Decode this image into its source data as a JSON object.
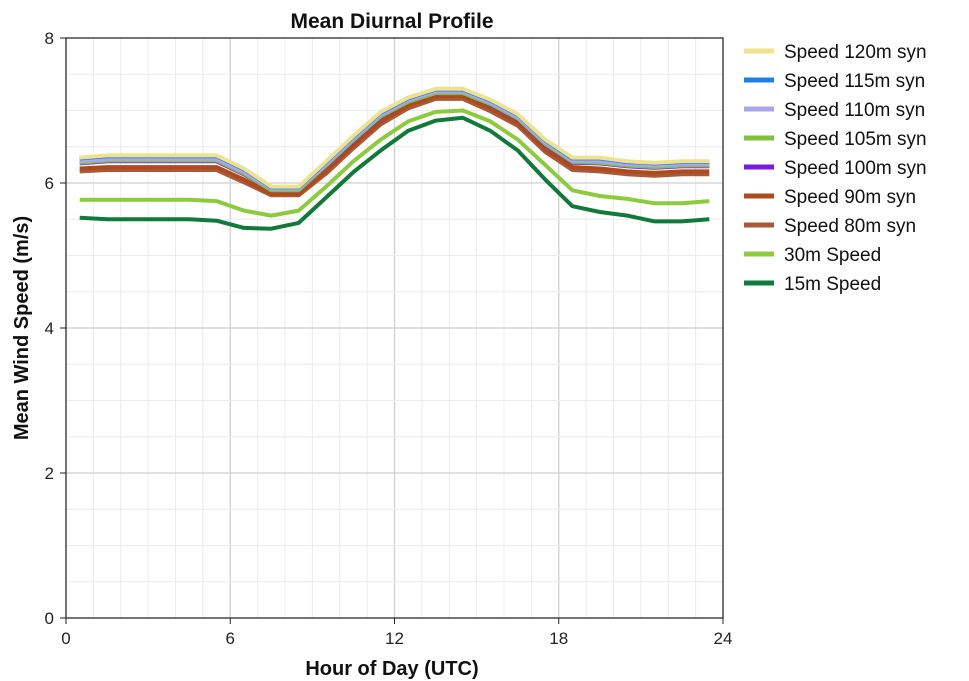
{
  "chart_data": {
    "type": "line",
    "title": "Mean Diurnal Profile",
    "xlabel": "Hour of Day (UTC)",
    "ylabel": "Mean Wind Speed (m/s)",
    "xlim": [
      0,
      24
    ],
    "ylim": [
      0,
      8
    ],
    "xticks": [
      0,
      6,
      12,
      18,
      24
    ],
    "yticks": [
      0,
      2,
      4,
      6,
      8
    ],
    "grid": true,
    "legend_position": "right",
    "x": [
      0.5,
      1.5,
      2.5,
      3.5,
      4.5,
      5.5,
      6.5,
      7.5,
      8.5,
      9.5,
      10.5,
      11.5,
      12.5,
      13.5,
      14.5,
      15.5,
      16.5,
      17.5,
      18.5,
      19.5,
      20.5,
      21.5,
      22.5,
      23.5
    ],
    "series": [
      {
        "name": "Speed 120m syn",
        "color": "#f0e28c",
        "values": [
          6.35,
          6.38,
          6.38,
          6.38,
          6.38,
          6.38,
          6.2,
          5.95,
          5.95,
          6.3,
          6.65,
          6.98,
          7.18,
          7.3,
          7.3,
          7.15,
          6.95,
          6.6,
          6.35,
          6.35,
          6.3,
          6.28,
          6.3,
          6.3
        ]
      },
      {
        "name": "Speed 115m syn",
        "color": "#1e7fe8",
        "values": [
          6.34,
          6.37,
          6.37,
          6.37,
          6.37,
          6.37,
          6.19,
          5.94,
          5.94,
          6.29,
          6.64,
          6.97,
          7.17,
          7.29,
          7.29,
          7.14,
          6.94,
          6.59,
          6.34,
          6.34,
          6.29,
          6.27,
          6.29,
          6.29
        ]
      },
      {
        "name": "Speed 110m syn",
        "color": "#a9a6ee",
        "values": [
          6.3,
          6.33,
          6.33,
          6.33,
          6.33,
          6.33,
          6.15,
          5.92,
          5.92,
          6.26,
          6.61,
          6.94,
          7.14,
          7.26,
          7.26,
          7.11,
          6.91,
          6.56,
          6.31,
          6.3,
          6.26,
          6.24,
          6.26,
          6.26
        ]
      },
      {
        "name": "Speed 105m syn",
        "color": "#7cc23a",
        "values": [
          6.28,
          6.31,
          6.31,
          6.31,
          6.31,
          6.31,
          6.13,
          5.9,
          5.9,
          6.24,
          6.59,
          6.92,
          7.12,
          7.24,
          7.24,
          7.09,
          6.89,
          6.54,
          6.29,
          6.28,
          6.24,
          6.22,
          6.24,
          6.24
        ]
      },
      {
        "name": "Speed 100m syn",
        "color": "#7a1ae0",
        "values": [
          6.27,
          6.3,
          6.3,
          6.3,
          6.3,
          6.3,
          6.12,
          5.9,
          5.9,
          6.23,
          6.58,
          6.91,
          7.12,
          7.24,
          7.24,
          7.08,
          6.88,
          6.53,
          6.28,
          6.27,
          6.23,
          6.21,
          6.23,
          6.23
        ]
      },
      {
        "name": "Speed 90m syn",
        "color": "#b04a1c",
        "values": [
          6.2,
          6.22,
          6.22,
          6.22,
          6.22,
          6.22,
          6.05,
          5.85,
          5.85,
          6.17,
          6.52,
          6.85,
          7.07,
          7.2,
          7.2,
          7.03,
          6.83,
          6.47,
          6.22,
          6.2,
          6.16,
          6.14,
          6.16,
          6.16
        ]
      },
      {
        "name": "Speed 80m syn",
        "color": "#a85a38",
        "values": [
          6.16,
          6.18,
          6.18,
          6.18,
          6.18,
          6.18,
          6.01,
          5.83,
          5.83,
          6.13,
          6.48,
          6.81,
          7.03,
          7.16,
          7.16,
          6.99,
          6.79,
          6.43,
          6.18,
          6.16,
          6.12,
          6.1,
          6.12,
          6.12
        ]
      },
      {
        "name": "30m Speed",
        "color": "#8ccc3c",
        "values": [
          5.77,
          5.77,
          5.77,
          5.77,
          5.77,
          5.75,
          5.62,
          5.55,
          5.62,
          5.95,
          6.3,
          6.6,
          6.85,
          6.98,
          7.0,
          6.85,
          6.6,
          6.25,
          5.9,
          5.82,
          5.78,
          5.72,
          5.72,
          5.75
        ]
      },
      {
        "name": "15m Speed",
        "color": "#0f7a3a",
        "values": [
          5.52,
          5.5,
          5.5,
          5.5,
          5.5,
          5.48,
          5.38,
          5.37,
          5.45,
          5.8,
          6.15,
          6.45,
          6.72,
          6.86,
          6.9,
          6.72,
          6.45,
          6.05,
          5.68,
          5.6,
          5.55,
          5.47,
          5.47,
          5.5
        ]
      }
    ]
  }
}
